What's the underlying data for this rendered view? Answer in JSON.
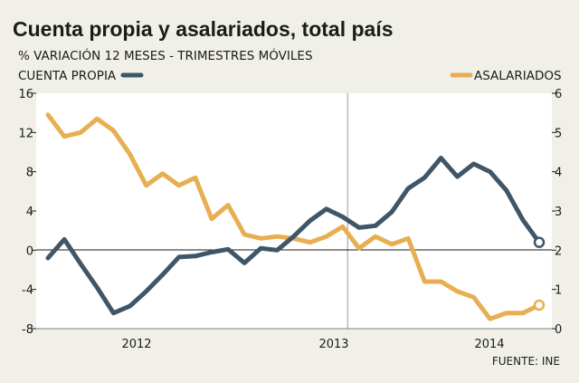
{
  "chart_data": {
    "type": "line",
    "title": "Cuenta propia y asalariados, total país",
    "subtitle": "% VARIACIÓN 12 MESES - TRIMESTRES MÓVILES",
    "source": "FUENTE: INE",
    "x_labels": [
      "2012",
      "2013",
      "2014"
    ],
    "y_left": {
      "min": -8,
      "max": 16,
      "ticks": [
        -8,
        -4,
        0,
        4,
        8,
        12,
        16
      ],
      "tick_labels": [
        "-8",
        "-4",
        "0",
        "4",
        "8",
        "12",
        "16"
      ]
    },
    "y_right": {
      "min": 0,
      "max": 6,
      "ticks": [
        0,
        1,
        2,
        3,
        4,
        5,
        6
      ],
      "tick_labels": [
        "0",
        "1",
        "2",
        "3",
        "4",
        "5",
        "6"
      ]
    },
    "year_dividers_after_period_index": [
      18.3,
      38.8
    ],
    "series": [
      {
        "name": "CUENTA PROPIA",
        "axis": "left",
        "color": "#3f5668",
        "values": [
          -0.8,
          1.1,
          -1.4,
          -3.8,
          -6.4,
          -5.7,
          -4.2,
          -2.5,
          -0.7,
          -0.6,
          -0.2,
          0.1,
          -1.3,
          0.2,
          0.0,
          1.4,
          3.0,
          4.2,
          3.4,
          2.3,
          2.5,
          3.9,
          6.3,
          7.4,
          9.4,
          7.5,
          8.8,
          8.0,
          6.1,
          3.1,
          0.8
        ]
      },
      {
        "name": "ASALARIADOS",
        "axis": "right",
        "color": "#e8ae52",
        "values": [
          5.45,
          4.9,
          5.0,
          5.35,
          5.05,
          4.45,
          3.65,
          3.95,
          3.65,
          3.85,
          2.8,
          3.15,
          2.4,
          2.3,
          2.35,
          2.3,
          2.2,
          2.35,
          2.6,
          2.05,
          2.35,
          2.15,
          2.3,
          1.2,
          1.2,
          0.95,
          0.8,
          0.25,
          0.4,
          0.4,
          0.6
        ]
      }
    ]
  }
}
